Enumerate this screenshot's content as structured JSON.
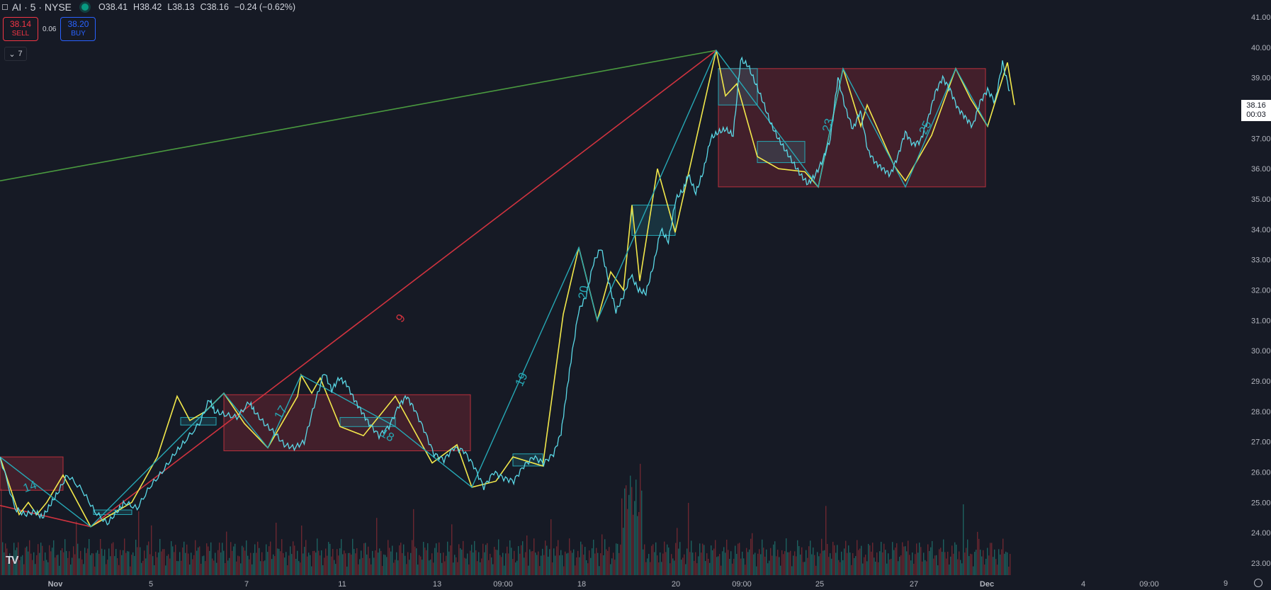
{
  "legend": {
    "title": "AI · 5 · NYSE",
    "open": "O38.41",
    "high": "H38.42",
    "low": "L38.13",
    "close": "C38.16",
    "change": "−0.24 (−0.62%)"
  },
  "trade": {
    "sell_price": "38.14",
    "sell_label": "SELL",
    "spread": "0.06",
    "buy_price": "38.20",
    "buy_label": "BUY"
  },
  "indicators_toggle": "7",
  "last_price": {
    "price": "38.16",
    "countdown": "00:03"
  },
  "corner_number": "9",
  "colors": {
    "background": "#161a25",
    "candle": "#5ad8e6",
    "zigzag_yellow": "#f2e84b",
    "zigzag_teal": "#26a8b5",
    "range_box": "#b8303c",
    "trend_green": "#4a9a3f",
    "trend_red": "#d0333f",
    "volume_up": "#1e6e6a",
    "volume_down": "#7a2a32"
  },
  "chart_data": {
    "type": "line",
    "symbol": "AI",
    "interval": "5",
    "exchange": "NYSE",
    "ylim": [
      22.7,
      41.5
    ],
    "y_ticks": [
      "41.00",
      "40.00",
      "39.00",
      "38.00",
      "37.00",
      "36.00",
      "35.00",
      "34.00",
      "33.00",
      "32.00",
      "31.00",
      "30.00",
      "29.00",
      "28.00",
      "27.00",
      "26.00",
      "25.00",
      "24.00",
      "23.00"
    ],
    "x_ticks": [
      "Nov",
      "5",
      "7",
      "11",
      "13",
      "09:00",
      "18",
      "20",
      "09:00",
      "25",
      "27",
      "Dec",
      "4",
      "09:00"
    ],
    "price_path": [
      [
        0,
        26.5
      ],
      [
        0.06,
        24.8
      ],
      [
        0.1,
        24.6
      ],
      [
        0.14,
        24.7
      ],
      [
        0.17,
        24.5
      ],
      [
        0.2,
        24.9
      ],
      [
        0.23,
        25.3
      ],
      [
        0.27,
        25.9
      ],
      [
        0.33,
        25.4
      ],
      [
        0.38,
        24.7
      ],
      [
        0.43,
        24.3
      ],
      [
        0.47,
        24.7
      ],
      [
        0.5,
        25.0
      ],
      [
        0.55,
        24.8
      ],
      [
        0.6,
        25.5
      ],
      [
        0.65,
        26.0
      ],
      [
        0.7,
        26.6
      ],
      [
        0.74,
        27.0
      ],
      [
        0.8,
        27.6
      ],
      [
        0.84,
        28.4
      ],
      [
        0.86,
        28.0
      ],
      [
        0.9,
        27.9
      ],
      [
        0.95,
        27.8
      ],
      [
        1.0,
        28.3
      ],
      [
        1.02,
        28.0
      ],
      [
        1.06,
        27.6
      ],
      [
        1.1,
        27.3
      ],
      [
        1.14,
        26.9
      ],
      [
        1.18,
        26.8
      ],
      [
        1.22,
        27.0
      ],
      [
        1.26,
        28.2
      ],
      [
        1.3,
        29.3
      ],
      [
        1.33,
        28.7
      ],
      [
        1.36,
        29.1
      ],
      [
        1.39,
        28.9
      ],
      [
        1.42,
        28.4
      ],
      [
        1.45,
        28.0
      ],
      [
        1.48,
        27.6
      ],
      [
        1.52,
        27.2
      ],
      [
        1.56,
        27.5
      ],
      [
        1.6,
        28.2
      ],
      [
        1.63,
        28.5
      ],
      [
        1.66,
        28.1
      ],
      [
        1.7,
        27.4
      ],
      [
        1.74,
        26.6
      ],
      [
        1.78,
        26.4
      ],
      [
        1.82,
        26.8
      ],
      [
        1.86,
        26.7
      ],
      [
        1.9,
        26.2
      ],
      [
        1.94,
        25.5
      ],
      [
        1.98,
        26.0
      ],
      [
        2.02,
        25.8
      ],
      [
        2.06,
        25.7
      ],
      [
        2.1,
        26.2
      ],
      [
        2.14,
        26.5
      ],
      [
        2.18,
        26.3
      ],
      [
        2.22,
        26.6
      ],
      [
        2.25,
        27.3
      ],
      [
        2.27,
        28.5
      ],
      [
        2.29,
        29.7
      ],
      [
        2.32,
        31.3
      ],
      [
        2.35,
        31.8
      ],
      [
        2.38,
        32.9
      ],
      [
        2.41,
        33.4
      ],
      [
        2.44,
        32.3
      ],
      [
        2.47,
        31.3
      ],
      [
        2.5,
        31.8
      ],
      [
        2.53,
        32.5
      ],
      [
        2.56,
        32.0
      ],
      [
        2.59,
        31.9
      ],
      [
        2.62,
        32.8
      ],
      [
        2.65,
        34.0
      ],
      [
        2.68,
        33.6
      ],
      [
        2.71,
        35.0
      ],
      [
        2.74,
        35.3
      ],
      [
        2.76,
        35.8
      ],
      [
        2.79,
        35.2
      ],
      [
        2.82,
        35.9
      ],
      [
        2.85,
        37.0
      ],
      [
        2.88,
        37.2
      ],
      [
        2.91,
        37.3
      ],
      [
        2.94,
        37.1
      ],
      [
        2.97,
        39.6
      ],
      [
        3.0,
        39.4
      ],
      [
        3.03,
        38.8
      ],
      [
        3.06,
        38.2
      ],
      [
        3.09,
        37.5
      ],
      [
        3.12,
        37.0
      ],
      [
        3.15,
        36.6
      ],
      [
        3.18,
        36.2
      ],
      [
        3.21,
        35.8
      ],
      [
        3.24,
        35.5
      ],
      [
        3.27,
        35.8
      ],
      [
        3.3,
        36.3
      ],
      [
        3.33,
        37.0
      ],
      [
        3.36,
        39.0
      ],
      [
        3.39,
        38.0
      ],
      [
        3.42,
        37.3
      ],
      [
        3.45,
        37.9
      ],
      [
        3.48,
        36.6
      ],
      [
        3.51,
        36.2
      ],
      [
        3.54,
        36.0
      ],
      [
        3.57,
        35.8
      ],
      [
        3.6,
        36.4
      ],
      [
        3.63,
        37.2
      ],
      [
        3.66,
        36.8
      ],
      [
        3.69,
        36.9
      ],
      [
        3.72,
        37.6
      ],
      [
        3.75,
        38.5
      ],
      [
        3.78,
        39.0
      ],
      [
        3.81,
        38.6
      ],
      [
        3.84,
        38.0
      ],
      [
        3.87,
        37.7
      ],
      [
        3.9,
        37.4
      ],
      [
        3.93,
        38.2
      ],
      [
        3.96,
        38.6
      ],
      [
        3.99,
        38.2
      ],
      [
        4.02,
        39.5
      ],
      [
        4.05,
        38.5
      ]
    ],
    "annotations": [
      "14",
      "9",
      "17",
      "18",
      "19",
      "20",
      "23",
      "25"
    ]
  }
}
